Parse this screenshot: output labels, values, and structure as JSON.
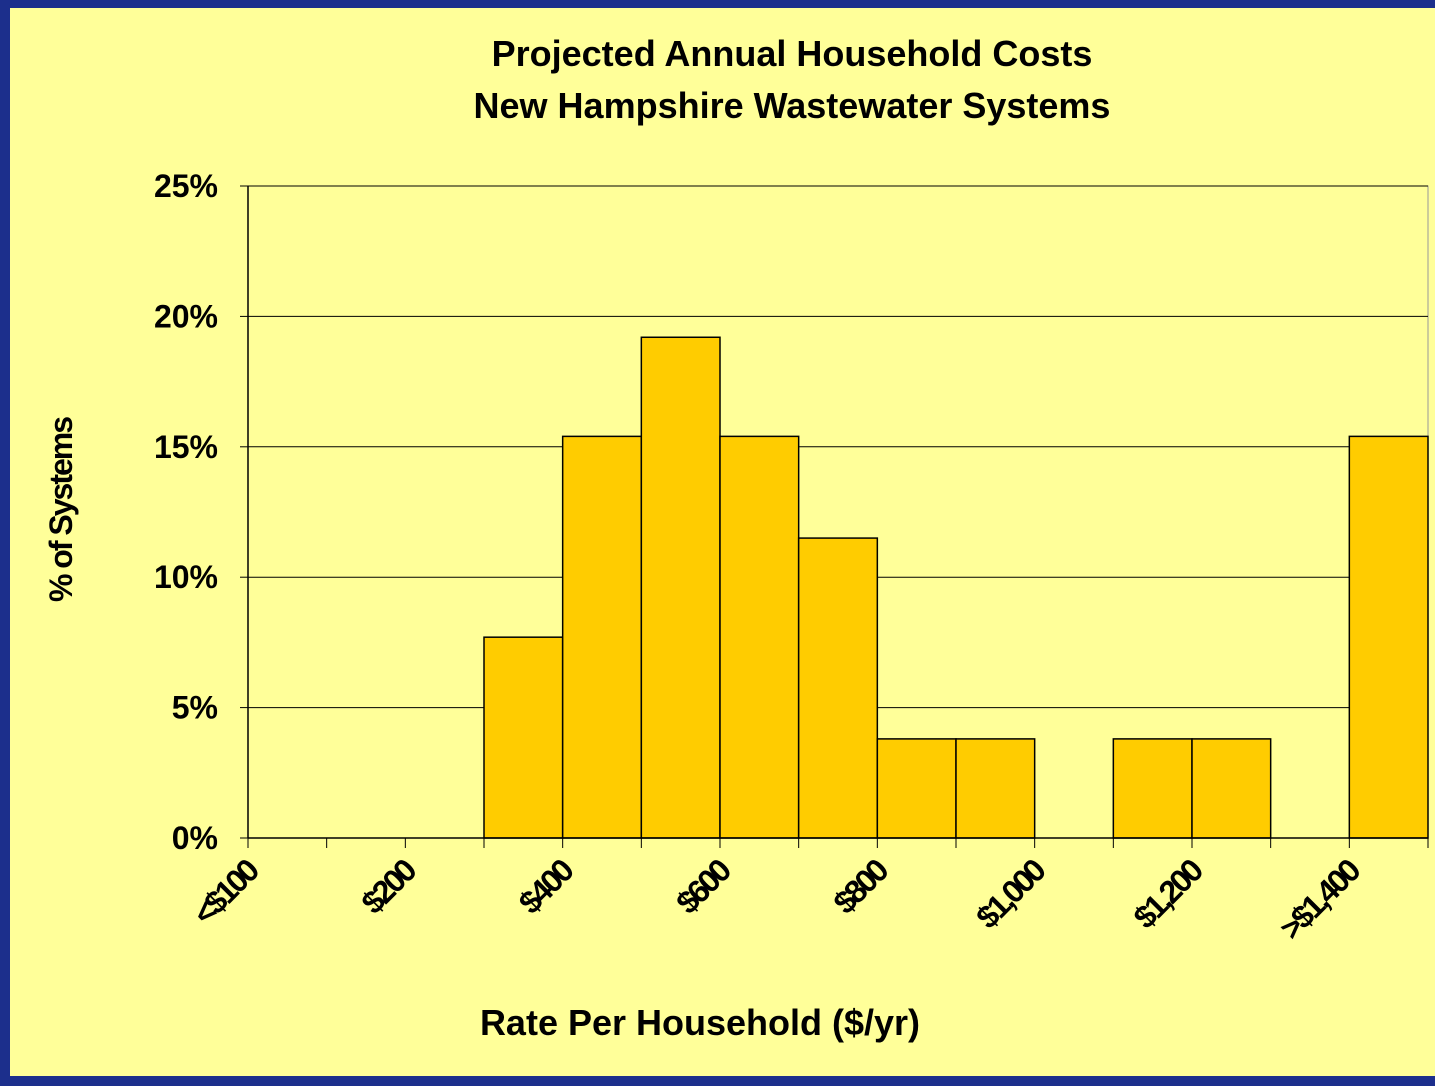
{
  "chart_data": {
    "type": "bar",
    "title": "Projected Annual Household Costs",
    "subtitle": "New Hampshire Wastewater Systems",
    "x_label": "Rate Per Household ($/yr)",
    "y_label": "% of Systems",
    "categories": [
      "<$100",
      null,
      "$200",
      null,
      "$400",
      null,
      "$600",
      null,
      "$800",
      null,
      "$1,000",
      null,
      "$1,200",
      null,
      ">$1,400"
    ],
    "values": [
      0,
      0,
      0,
      7.7,
      15.4,
      19.2,
      15.4,
      11.5,
      3.8,
      3.8,
      0,
      3.8,
      3.8,
      0,
      15.4
    ],
    "color": "#ffcc00",
    "ylim": [
      0,
      25
    ],
    "yticks": [
      {
        "value": 0,
        "label": "0%"
      },
      {
        "value": 5,
        "label": "5%"
      },
      {
        "value": 10,
        "label": "10%"
      },
      {
        "value": 15,
        "label": "15%"
      },
      {
        "value": 20,
        "label": "20%"
      },
      {
        "value": 25,
        "label": "25%"
      }
    ],
    "grid": true
  }
}
